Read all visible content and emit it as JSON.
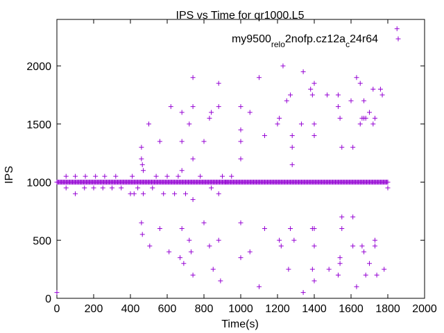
{
  "chart_data": {
    "type": "scatter",
    "title": "IPS vs Time for qr1000.L5",
    "xlabel": "Time(s)",
    "ylabel": "IPS",
    "xlim": [
      0,
      2000
    ],
    "ylim": [
      0,
      2400
    ],
    "xticks": [
      0,
      200,
      400,
      600,
      800,
      1000,
      1200,
      1400,
      1600,
      1800,
      2000
    ],
    "yticks": [
      0,
      500,
      1000,
      1500,
      2000
    ],
    "grid": false,
    "legend_position": "top-right",
    "series": [
      {
        "name_parts": [
          "my9500",
          "rel",
          "o",
          "2nofp.cz12a",
          "c",
          "24r64"
        ],
        "color": "#9400d3",
        "marker": "plus",
        "baseline": {
          "y": 1000,
          "x_start": 0,
          "x_end": 1800,
          "step": 5
        },
        "points": [
          [
            0,
            50
          ],
          [
            50,
            1050
          ],
          [
            50,
            950
          ],
          [
            100,
            900
          ],
          [
            100,
            1050
          ],
          [
            150,
            950
          ],
          [
            155,
            1050
          ],
          [
            200,
            950
          ],
          [
            210,
            1050
          ],
          [
            250,
            950
          ],
          [
            260,
            1050
          ],
          [
            300,
            950
          ],
          [
            320,
            1050
          ],
          [
            350,
            950
          ],
          [
            400,
            900
          ],
          [
            410,
            1050
          ],
          [
            420,
            900
          ],
          [
            440,
            950
          ],
          [
            460,
            1300
          ],
          [
            460,
            1200
          ],
          [
            465,
            1150
          ],
          [
            470,
            1100
          ],
          [
            460,
            650
          ],
          [
            465,
            550
          ],
          [
            470,
            900
          ],
          [
            500,
            1500
          ],
          [
            505,
            450
          ],
          [
            520,
            950
          ],
          [
            540,
            1050
          ],
          [
            560,
            1350
          ],
          [
            560,
            600
          ],
          [
            580,
            900
          ],
          [
            600,
            1050
          ],
          [
            610,
            400
          ],
          [
            620,
            1650
          ],
          [
            640,
            900
          ],
          [
            660,
            1050
          ],
          [
            670,
            350
          ],
          [
            680,
            1600
          ],
          [
            680,
            1350
          ],
          [
            680,
            1100
          ],
          [
            680,
            600
          ],
          [
            690,
            300
          ],
          [
            700,
            900
          ],
          [
            720,
            1500
          ],
          [
            720,
            500
          ],
          [
            730,
            400
          ],
          [
            740,
            1900
          ],
          [
            740,
            1650
          ],
          [
            740,
            1200
          ],
          [
            740,
            850
          ],
          [
            740,
            200
          ],
          [
            780,
            1050
          ],
          [
            800,
            1350
          ],
          [
            800,
            650
          ],
          [
            830,
            1550
          ],
          [
            840,
            1600
          ],
          [
            830,
            450
          ],
          [
            840,
            950
          ],
          [
            850,
            250
          ],
          [
            880,
            1850
          ],
          [
            880,
            1650
          ],
          [
            880,
            900
          ],
          [
            880,
            500
          ],
          [
            890,
            150
          ],
          [
            900,
            1050
          ],
          [
            920,
            1000
          ],
          [
            950,
            1050
          ],
          [
            1000,
            1650
          ],
          [
            1000,
            1450
          ],
          [
            1000,
            1350
          ],
          [
            1000,
            1200
          ],
          [
            1000,
            650
          ],
          [
            1000,
            350
          ],
          [
            1050,
            1600
          ],
          [
            1050,
            400
          ],
          [
            1100,
            1900
          ],
          [
            1100,
            100
          ],
          [
            1130,
            1400
          ],
          [
            1130,
            600
          ],
          [
            1200,
            1500
          ],
          [
            1210,
            1550
          ],
          [
            1210,
            500
          ],
          [
            1220,
            450
          ],
          [
            1230,
            2000
          ],
          [
            1250,
            1700
          ],
          [
            1260,
            250
          ],
          [
            1270,
            1750
          ],
          [
            1280,
            1400
          ],
          [
            1280,
            1300
          ],
          [
            1280,
            1150
          ],
          [
            1270,
            600
          ],
          [
            1290,
            500
          ],
          [
            1330,
            1500
          ],
          [
            1340,
            1950
          ],
          [
            1340,
            50
          ],
          [
            1380,
            1800
          ],
          [
            1390,
            1750
          ],
          [
            1400,
            1850
          ],
          [
            1390,
            250
          ],
          [
            1390,
            600
          ],
          [
            1400,
            1500
          ],
          [
            1400,
            1400
          ],
          [
            1400,
            600
          ],
          [
            1400,
            450
          ],
          [
            1400,
            150
          ],
          [
            1470,
            1750
          ],
          [
            1480,
            250
          ],
          [
            1530,
            1750
          ],
          [
            1530,
            1650
          ],
          [
            1540,
            1550
          ],
          [
            1530,
            200
          ],
          [
            1540,
            350
          ],
          [
            1540,
            300
          ],
          [
            1550,
            1300
          ],
          [
            1550,
            700
          ],
          [
            1550,
            600
          ],
          [
            1600,
            1700
          ],
          [
            1610,
            1300
          ],
          [
            1610,
            700
          ],
          [
            1610,
            450
          ],
          [
            1630,
            1900
          ],
          [
            1630,
            100
          ],
          [
            1650,
            1500
          ],
          [
            1650,
            1850
          ],
          [
            1660,
            1550
          ],
          [
            1660,
            450
          ],
          [
            1670,
            1700
          ],
          [
            1670,
            1550
          ],
          [
            1670,
            400
          ],
          [
            1680,
            1550
          ],
          [
            1680,
            200
          ],
          [
            1700,
            1600
          ],
          [
            1700,
            300
          ],
          [
            1720,
            1800
          ],
          [
            1720,
            1500
          ],
          [
            1730,
            1550
          ],
          [
            1730,
            450
          ],
          [
            1730,
            500
          ],
          [
            1740,
            200
          ],
          [
            1760,
            1800
          ],
          [
            1770,
            1750
          ],
          [
            1780,
            250
          ],
          [
            1800,
            950
          ],
          [
            1850,
            2320
          ]
        ]
      }
    ]
  }
}
